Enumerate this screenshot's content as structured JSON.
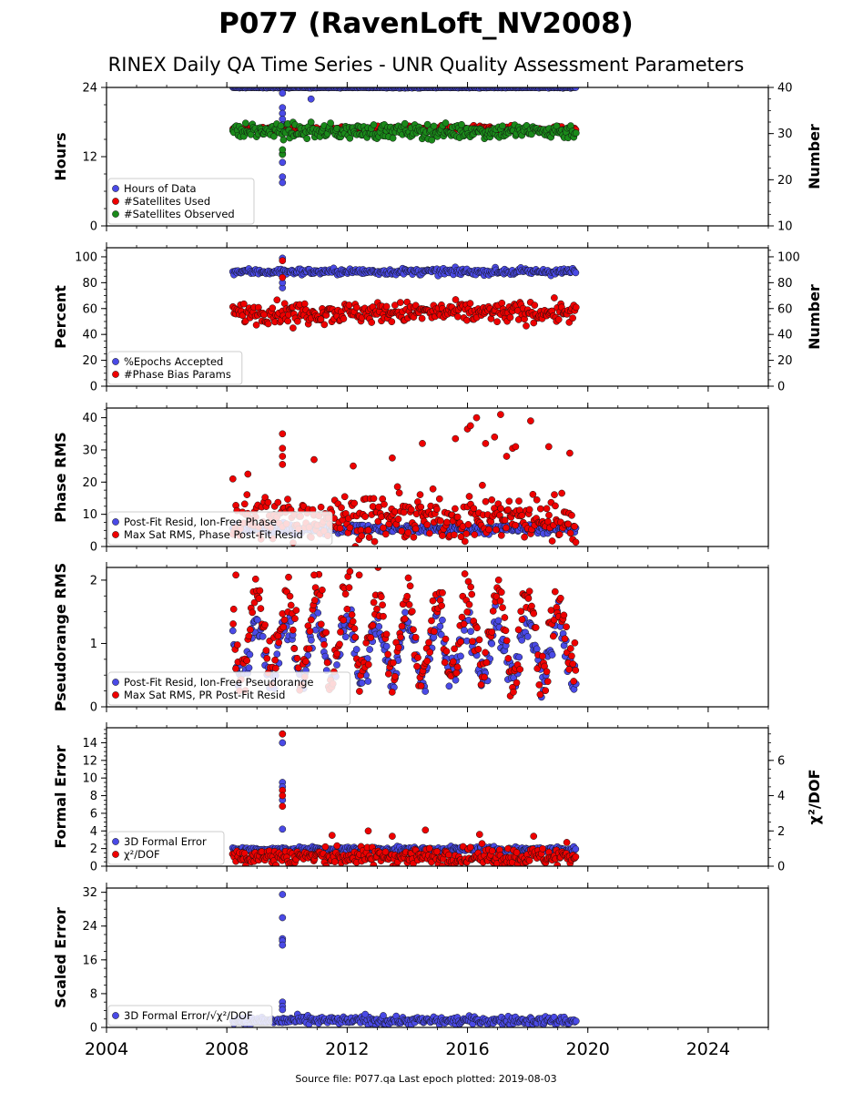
{
  "title": "P077 (RavenLoft_NV2008)",
  "subtitle": "RINEX Daily QA Time Series - UNR Quality Assessment Parameters",
  "footer": "Source file: P077.qa Last epoch plotted: 2019-08-03",
  "x_axis": {
    "min": 2004,
    "max": 2026,
    "ticks": [
      "2004",
      "2008",
      "2012",
      "2016",
      "2020",
      "2024"
    ]
  },
  "chart_data": [
    {
      "type": "scatter",
      "ylabel": "Hours",
      "ylim": [
        0,
        24
      ],
      "yticks": [
        "0",
        "12",
        "24"
      ],
      "y2label": "Number",
      "y2lim": [
        10,
        40
      ],
      "y2ticks": [
        "10",
        "20",
        "30",
        "40"
      ],
      "legend": {
        "placement": "lower-left",
        "entries": [
          "Hours of Data",
          "#Satellites Used",
          "#Satellites Observed"
        ]
      },
      "series": [
        {
          "name": "Hours of Data",
          "axis": "left",
          "color": "#4a4ae6",
          "x_range": [
            2008.2,
            2019.6
          ],
          "typical": 24.0,
          "spread": 0.05,
          "outliers": [
            [
              2009.85,
              23.0
            ],
            [
              2009.85,
              20.5
            ],
            [
              2009.85,
              19.5
            ],
            [
              2009.85,
              18.5
            ],
            [
              2009.85,
              17.5
            ],
            [
              2009.85,
              12.5
            ],
            [
              2009.85,
              11.0
            ],
            [
              2009.85,
              8.5
            ],
            [
              2009.85,
              7.5
            ],
            [
              2010.8,
              22.0
            ]
          ]
        },
        {
          "name": "#Satellites Used",
          "axis": "right",
          "color": "#ee0000",
          "x_range": [
            2008.2,
            2019.6
          ],
          "typical": 31.0,
          "spread": 0.3,
          "outliers": [
            [
              2009.7,
              31.0
            ]
          ]
        },
        {
          "name": "#Satellites Observed",
          "axis": "right",
          "color": "#1a8a1a",
          "x_range": [
            2008.2,
            2019.6
          ],
          "typical": 30.5,
          "spread": 0.8,
          "outliers": [
            [
              2009.85,
              25.5
            ],
            [
              2009.85,
              26.5
            ]
          ]
        }
      ]
    },
    {
      "type": "scatter",
      "ylabel": "Percent",
      "ylim": [
        0,
        107
      ],
      "yticks": [
        "0",
        "20",
        "40",
        "60",
        "80",
        "100"
      ],
      "y2label": "Number",
      "y2lim": [
        0,
        107
      ],
      "y2ticks": [
        "0",
        "20",
        "40",
        "60",
        "80",
        "100"
      ],
      "legend": {
        "placement": "lower-left",
        "entries": [
          "%Epochs Accepted",
          "#Phase Bias Params"
        ]
      },
      "series": [
        {
          "name": "%Epochs Accepted",
          "axis": "left",
          "color": "#4a4ae6",
          "x_range": [
            2008.2,
            2019.6
          ],
          "typical": 88.5,
          "spread": 1.2,
          "outliers": [
            [
              2009.85,
              76.0
            ],
            [
              2009.85,
              80.0
            ],
            [
              2009.85,
              99.0
            ]
          ]
        },
        {
          "name": "#Phase Bias Params",
          "axis": "right",
          "color": "#ee0000",
          "x_range": [
            2008.2,
            2019.6
          ],
          "typical": 57.0,
          "spread": 4.0,
          "outliers": [
            [
              2009.85,
              97.0
            ],
            [
              2009.85,
              84.0
            ],
            [
              2010.2,
              45.0
            ]
          ]
        }
      ]
    },
    {
      "type": "scatter",
      "ylabel": "Phase RMS",
      "ylim": [
        0,
        43
      ],
      "yticks": [
        "0",
        "10",
        "20",
        "30",
        "40"
      ],
      "legend": {
        "placement": "lower-left",
        "entries": [
          "Post-Fit Resid, Ion-Free Phase",
          "Max Sat RMS, Phase Post-Fit Resid"
        ]
      },
      "series": [
        {
          "name": "Post-Fit Resid, Ion-Free Phase",
          "axis": "left",
          "color": "#4a4ae6",
          "x_range": [
            2008.2,
            2019.6
          ],
          "typical": 5.5,
          "spread": 0.7,
          "outliers": []
        },
        {
          "name": "Max Sat RMS, Phase Post-Fit Resid",
          "axis": "left",
          "color": "#ee0000",
          "x_range": [
            2008.2,
            2019.6
          ],
          "typical": 9.0,
          "spread": 3.5,
          "outliers": [
            [
              2009.85,
              35.0
            ],
            [
              2009.85,
              30.5
            ],
            [
              2009.85,
              28.0
            ],
            [
              2009.85,
              25.5
            ],
            [
              2008.2,
              21.0
            ],
            [
              2008.7,
              22.5
            ],
            [
              2010.9,
              27.0
            ],
            [
              2014.5,
              32.0
            ],
            [
              2015.6,
              33.5
            ],
            [
              2016.0,
              36.5
            ],
            [
              2016.1,
              37.5
            ],
            [
              2016.3,
              40.0
            ],
            [
              2016.6,
              32.0
            ],
            [
              2016.9,
              34.0
            ],
            [
              2017.1,
              41.0
            ],
            [
              2017.3,
              28.0
            ],
            [
              2017.5,
              30.5
            ],
            [
              2017.6,
              31.0
            ],
            [
              2018.1,
              39.0
            ],
            [
              2018.7,
              31.0
            ],
            [
              2019.4,
              29.0
            ],
            [
              2013.5,
              27.5
            ],
            [
              2012.2,
              25.0
            ]
          ]
        }
      ]
    },
    {
      "type": "scatter",
      "ylabel": "Pseudorange RMS",
      "ylim": [
        0,
        2.2
      ],
      "yticks": [
        "0",
        "1",
        "2"
      ],
      "legend": {
        "placement": "lower-left",
        "entries": [
          "Post-Fit Resid, Ion-Free Pseudorange",
          "Max Sat RMS, PR Post-Fit Resid"
        ]
      },
      "series": [
        {
          "name": "Post-Fit Resid, Ion-Free Pseudorange",
          "axis": "left",
          "color": "#4a4ae6",
          "x_range": [
            2008.2,
            2019.6
          ],
          "seasonal": {
            "mean": 0.9,
            "amp": 0.45
          },
          "spread": 0.15,
          "outliers": []
        },
        {
          "name": "Max Sat RMS, PR Post-Fit Resid",
          "axis": "left",
          "color": "#ee0000",
          "x_range": [
            2008.2,
            2019.6
          ],
          "seasonal": {
            "mean": 1.15,
            "amp": 0.65
          },
          "spread": 0.2,
          "outliers": [
            [
              2008.3,
              2.08
            ],
            [
              2010.9,
              2.08
            ],
            [
              2012.4,
              2.08
            ]
          ]
        }
      ]
    },
    {
      "type": "scatter",
      "ylabel": "Formal Error",
      "ylim": [
        0,
        15.7
      ],
      "yticks": [
        "0",
        "2",
        "4",
        "6",
        "8",
        "10",
        "12",
        "14"
      ],
      "y2label": "χ²/DOF",
      "y2lim": [
        0,
        7.85
      ],
      "y2ticks": [
        "0",
        "2",
        "4",
        "6"
      ],
      "legend": {
        "placement": "lower-left",
        "entries": [
          "3D Formal Error",
          "χ²/DOF"
        ]
      },
      "series": [
        {
          "name": "3D Formal Error",
          "axis": "left",
          "color": "#4a4ae6",
          "x_range": [
            2008.2,
            2019.6
          ],
          "typical": 1.9,
          "spread": 0.15,
          "outliers": [
            [
              2009.85,
              15.0
            ],
            [
              2009.85,
              14.0
            ],
            [
              2009.85,
              9.5
            ],
            [
              2009.85,
              9.0
            ],
            [
              2009.85,
              7.5
            ],
            [
              2009.85,
              4.2
            ]
          ]
        },
        {
          "name": "χ²/DOF",
          "axis": "right",
          "color": "#ee0000",
          "x_range": [
            2008.2,
            2019.6
          ],
          "typical": 0.55,
          "spread": 0.25,
          "outliers": [
            [
              2009.85,
              7.5
            ],
            [
              2009.85,
              4.3
            ],
            [
              2009.85,
              4.0
            ],
            [
              2009.85,
              3.4
            ],
            [
              2012.7,
              2.0
            ],
            [
              2014.6,
              2.05
            ],
            [
              2011.5,
              1.75
            ],
            [
              2013.5,
              1.7
            ],
            [
              2016.4,
              1.8
            ],
            [
              2018.2,
              1.7
            ],
            [
              2019.3,
              1.35
            ]
          ]
        }
      ]
    },
    {
      "type": "scatter",
      "ylabel": "Scaled Error",
      "ylim": [
        0,
        33
      ],
      "yticks": [
        "0",
        "8",
        "16",
        "24",
        "32"
      ],
      "legend": {
        "placement": "lower-left",
        "entries": [
          "3D Formal Error/√χ²/DOF"
        ]
      },
      "series": [
        {
          "name": "3D Formal Error/√χ²/DOF",
          "axis": "left",
          "color": "#4a4ae6",
          "x_range": [
            2008.2,
            2019.6
          ],
          "typical": 1.6,
          "spread": 0.5,
          "outliers": [
            [
              2009.85,
              31.5
            ],
            [
              2009.85,
              26.0
            ],
            [
              2009.85,
              21.0
            ],
            [
              2009.85,
              20.5
            ],
            [
              2009.85,
              19.5
            ],
            [
              2009.85,
              6.0
            ],
            [
              2009.85,
              5.0
            ],
            [
              2009.85,
              4.2
            ],
            [
              2012.6,
              3.1
            ],
            [
              2013.2,
              2.8
            ]
          ]
        }
      ]
    }
  ]
}
